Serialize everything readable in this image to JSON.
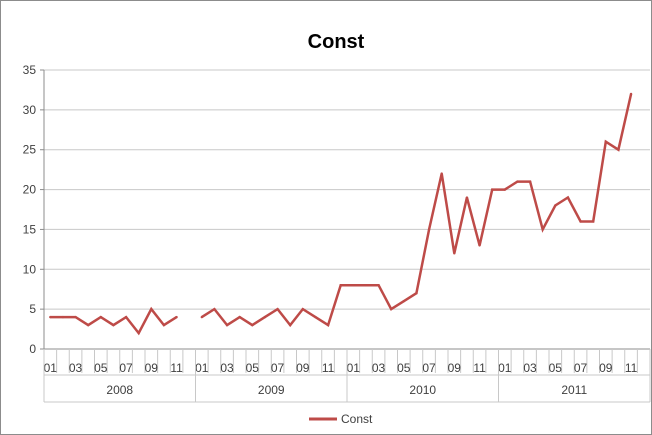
{
  "chart_data": {
    "type": "line",
    "title": "Const",
    "xlabel": "",
    "ylabel": "",
    "ylim": [
      0,
      35
    ],
    "yticks": [
      0,
      5,
      10,
      15,
      20,
      25,
      30,
      35
    ],
    "grid": true,
    "legend_position": "bottom",
    "line_color": "#BE4B48",
    "years": [
      "2008",
      "2009",
      "2010",
      "2011"
    ],
    "month_tick_labels": [
      "01",
      "03",
      "05",
      "07",
      "09",
      "11"
    ],
    "series": [
      {
        "name": "Const",
        "x": [
          "2008-01",
          "2008-02",
          "2008-03",
          "2008-04",
          "2008-05",
          "2008-06",
          "2008-07",
          "2008-08",
          "2008-09",
          "2008-10",
          "2008-11",
          "2008-12",
          "2009-01",
          "2009-02",
          "2009-03",
          "2009-04",
          "2009-05",
          "2009-06",
          "2009-07",
          "2009-08",
          "2009-09",
          "2009-10",
          "2009-11",
          "2009-12",
          "2010-01",
          "2010-02",
          "2010-03",
          "2010-04",
          "2010-05",
          "2010-06",
          "2010-07",
          "2010-08",
          "2010-09",
          "2010-10",
          "2010-11",
          "2010-12",
          "2011-01",
          "2011-02",
          "2011-03",
          "2011-04",
          "2011-05",
          "2011-06",
          "2011-07",
          "2011-08",
          "2011-09",
          "2011-10",
          "2011-11",
          "2011-12"
        ],
        "values": [
          4,
          4,
          4,
          3,
          4,
          3,
          4,
          2,
          5,
          3,
          4,
          null,
          4,
          5,
          3,
          4,
          3,
          4,
          5,
          3,
          5,
          4,
          3,
          8,
          8,
          8,
          8,
          5,
          6,
          7,
          15,
          22,
          12,
          19,
          13,
          20,
          20,
          21,
          21,
          15,
          18,
          19,
          16,
          16,
          26,
          25,
          32,
          null
        ]
      }
    ]
  }
}
